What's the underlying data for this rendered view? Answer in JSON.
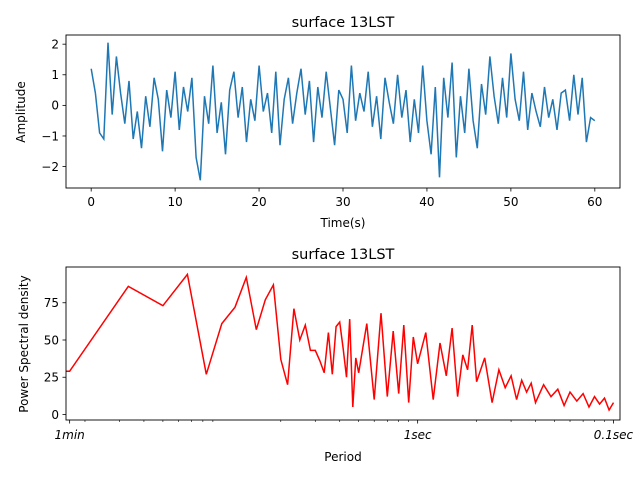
{
  "chart_data": [
    {
      "type": "line",
      "title": "surface 13LST",
      "xlabel": "Time(s)",
      "ylabel": "Amplitude",
      "xlim": [
        -3,
        63
      ],
      "ylim": [
        -2.7,
        2.3
      ],
      "x_ticks": [
        0,
        10,
        20,
        30,
        40,
        50,
        60
      ],
      "y_ticks": [
        -2,
        -1,
        0,
        1,
        2
      ],
      "line_color": "#1f77b4",
      "grid": false,
      "series": [
        {
          "x": [
            0,
            0.5,
            1,
            1.5,
            2,
            2.5,
            3,
            3.5,
            4,
            4.5,
            5,
            5.5,
            6,
            6.5,
            7,
            7.5,
            8,
            8.5,
            9,
            9.5,
            10,
            10.5,
            11,
            11.5,
            12,
            12.5,
            13,
            13.5,
            14,
            14.5,
            15,
            15.5,
            16,
            16.5,
            17,
            17.5,
            18,
            18.5,
            19,
            19.5,
            20,
            20.5,
            21,
            21.5,
            22,
            22.5,
            23,
            23.5,
            24,
            24.5,
            25,
            25.5,
            26,
            26.5,
            27,
            27.5,
            28,
            28.5,
            29,
            29.5,
            30,
            30.5,
            31,
            31.5,
            32,
            32.5,
            33,
            33.5,
            34,
            34.5,
            35,
            35.5,
            36,
            36.5,
            37,
            37.5,
            38,
            38.5,
            39,
            39.5,
            40,
            40.5,
            41,
            41.5,
            42,
            42.5,
            43,
            43.5,
            44,
            44.5,
            45,
            45.5,
            46,
            46.5,
            47,
            47.5,
            48,
            48.5,
            49,
            49.5,
            50,
            50.5,
            51,
            51.5,
            52,
            52.5,
            53,
            53.5,
            54,
            54.5,
            55,
            55.5,
            56,
            56.5,
            57,
            57.5,
            58,
            58.5,
            59,
            59.5,
            60
          ],
          "values": [
            1.2,
            0.4,
            -0.9,
            -1.1,
            2.05,
            -0.3,
            1.6,
            0.4,
            -0.6,
            0.8,
            -1.1,
            -0.2,
            -1.4,
            0.3,
            -0.7,
            0.9,
            0.2,
            -1.5,
            0.5,
            -0.4,
            1.1,
            -0.8,
            0.6,
            -0.2,
            0.9,
            -1.7,
            -2.45,
            0.3,
            -0.6,
            1.3,
            -0.9,
            0.1,
            -1.6,
            0.5,
            1.1,
            -0.4,
            0.6,
            -1.2,
            0.2,
            -0.5,
            1.3,
            -0.2,
            0.4,
            -0.9,
            1.1,
            -1.3,
            0.2,
            0.9,
            -0.6,
            0.4,
            1.2,
            -0.3,
            0.8,
            -1.2,
            0.6,
            -0.4,
            1.1,
            -0.1,
            -1.3,
            0.5,
            0.2,
            -0.9,
            1.3,
            -0.5,
            0.4,
            -0.2,
            1.1,
            -0.7,
            0.3,
            -1.1,
            0.9,
            0.1,
            -0.6,
            1.0,
            -0.4,
            0.5,
            -1.2,
            0.2,
            -0.9,
            1.3,
            -0.5,
            -1.6,
            0.6,
            -2.35,
            0.9,
            -0.4,
            1.4,
            -1.7,
            0.3,
            -0.9,
            1.2,
            -0.5,
            -1.4,
            0.7,
            -0.3,
            1.6,
            0.3,
            -0.6,
            0.9,
            -0.4,
            1.7,
            0.2,
            -0.5,
            1.1,
            -0.8,
            0.4,
            -0.2,
            -0.7,
            0.6,
            -0.4,
            0.2,
            -0.8,
            0.4,
            0.5,
            -0.5,
            1.0,
            -0.3,
            0.9,
            -1.2,
            -0.4,
            -0.5
          ]
        }
      ]
    },
    {
      "type": "line",
      "title": "surface 13LST",
      "xlabel": "Period",
      "ylabel": "Power Spectral density",
      "x_scale": "log",
      "xlim": [
        0.016,
        10.8
      ],
      "ylim": [
        -3.7,
        99
      ],
      "x_ticks": [
        {
          "value": 0.0167,
          "label": "1min"
        },
        {
          "value": 1,
          "label": "1sec"
        },
        {
          "value": 10,
          "label": "0.1sec"
        }
      ],
      "y_ticks": [
        0,
        25,
        50,
        75
      ],
      "line_color": "#ff0000",
      "grid": false,
      "series": [
        {
          "x": [
            0.016,
            0.0167,
            0.0333,
            0.05,
            0.0667,
            0.0833,
            0.1,
            0.1167,
            0.1333,
            0.15,
            0.1667,
            0.1833,
            0.2,
            0.2167,
            0.2333,
            0.25,
            0.2667,
            0.2833,
            0.3,
            0.3167,
            0.3333,
            0.35,
            0.3667,
            0.3833,
            0.4,
            0.4167,
            0.4333,
            0.45,
            0.4667,
            0.4833,
            0.5,
            0.55,
            0.6,
            0.65,
            0.7,
            0.75,
            0.8,
            0.85,
            0.9,
            0.95,
            1.0,
            1.1,
            1.2,
            1.3,
            1.4,
            1.5,
            1.6,
            1.7,
            1.8,
            1.9,
            2.0,
            2.2,
            2.4,
            2.6,
            2.8,
            3.0,
            3.2,
            3.4,
            3.6,
            3.8,
            4.0,
            4.4,
            4.8,
            5.2,
            5.6,
            6.0,
            6.5,
            7.0,
            7.5,
            8.0,
            8.5,
            9.0,
            9.5,
            10.0
          ],
          "values": [
            29,
            29,
            86,
            73,
            94,
            27,
            61,
            72,
            92,
            57,
            77,
            87,
            37,
            20,
            71,
            50,
            60,
            43,
            43,
            36,
            28,
            55,
            27,
            59,
            62,
            44,
            25,
            64,
            5,
            38,
            28,
            61,
            10,
            68,
            12,
            56,
            14,
            60,
            8,
            52,
            34,
            55,
            10,
            48,
            26,
            58,
            12,
            40,
            30,
            60,
            22,
            38,
            8,
            30,
            18,
            26,
            10,
            23,
            15,
            21,
            8,
            20,
            12,
            17,
            6,
            15,
            9,
            14,
            5,
            12,
            7,
            11,
            3,
            8
          ]
        }
      ]
    }
  ]
}
